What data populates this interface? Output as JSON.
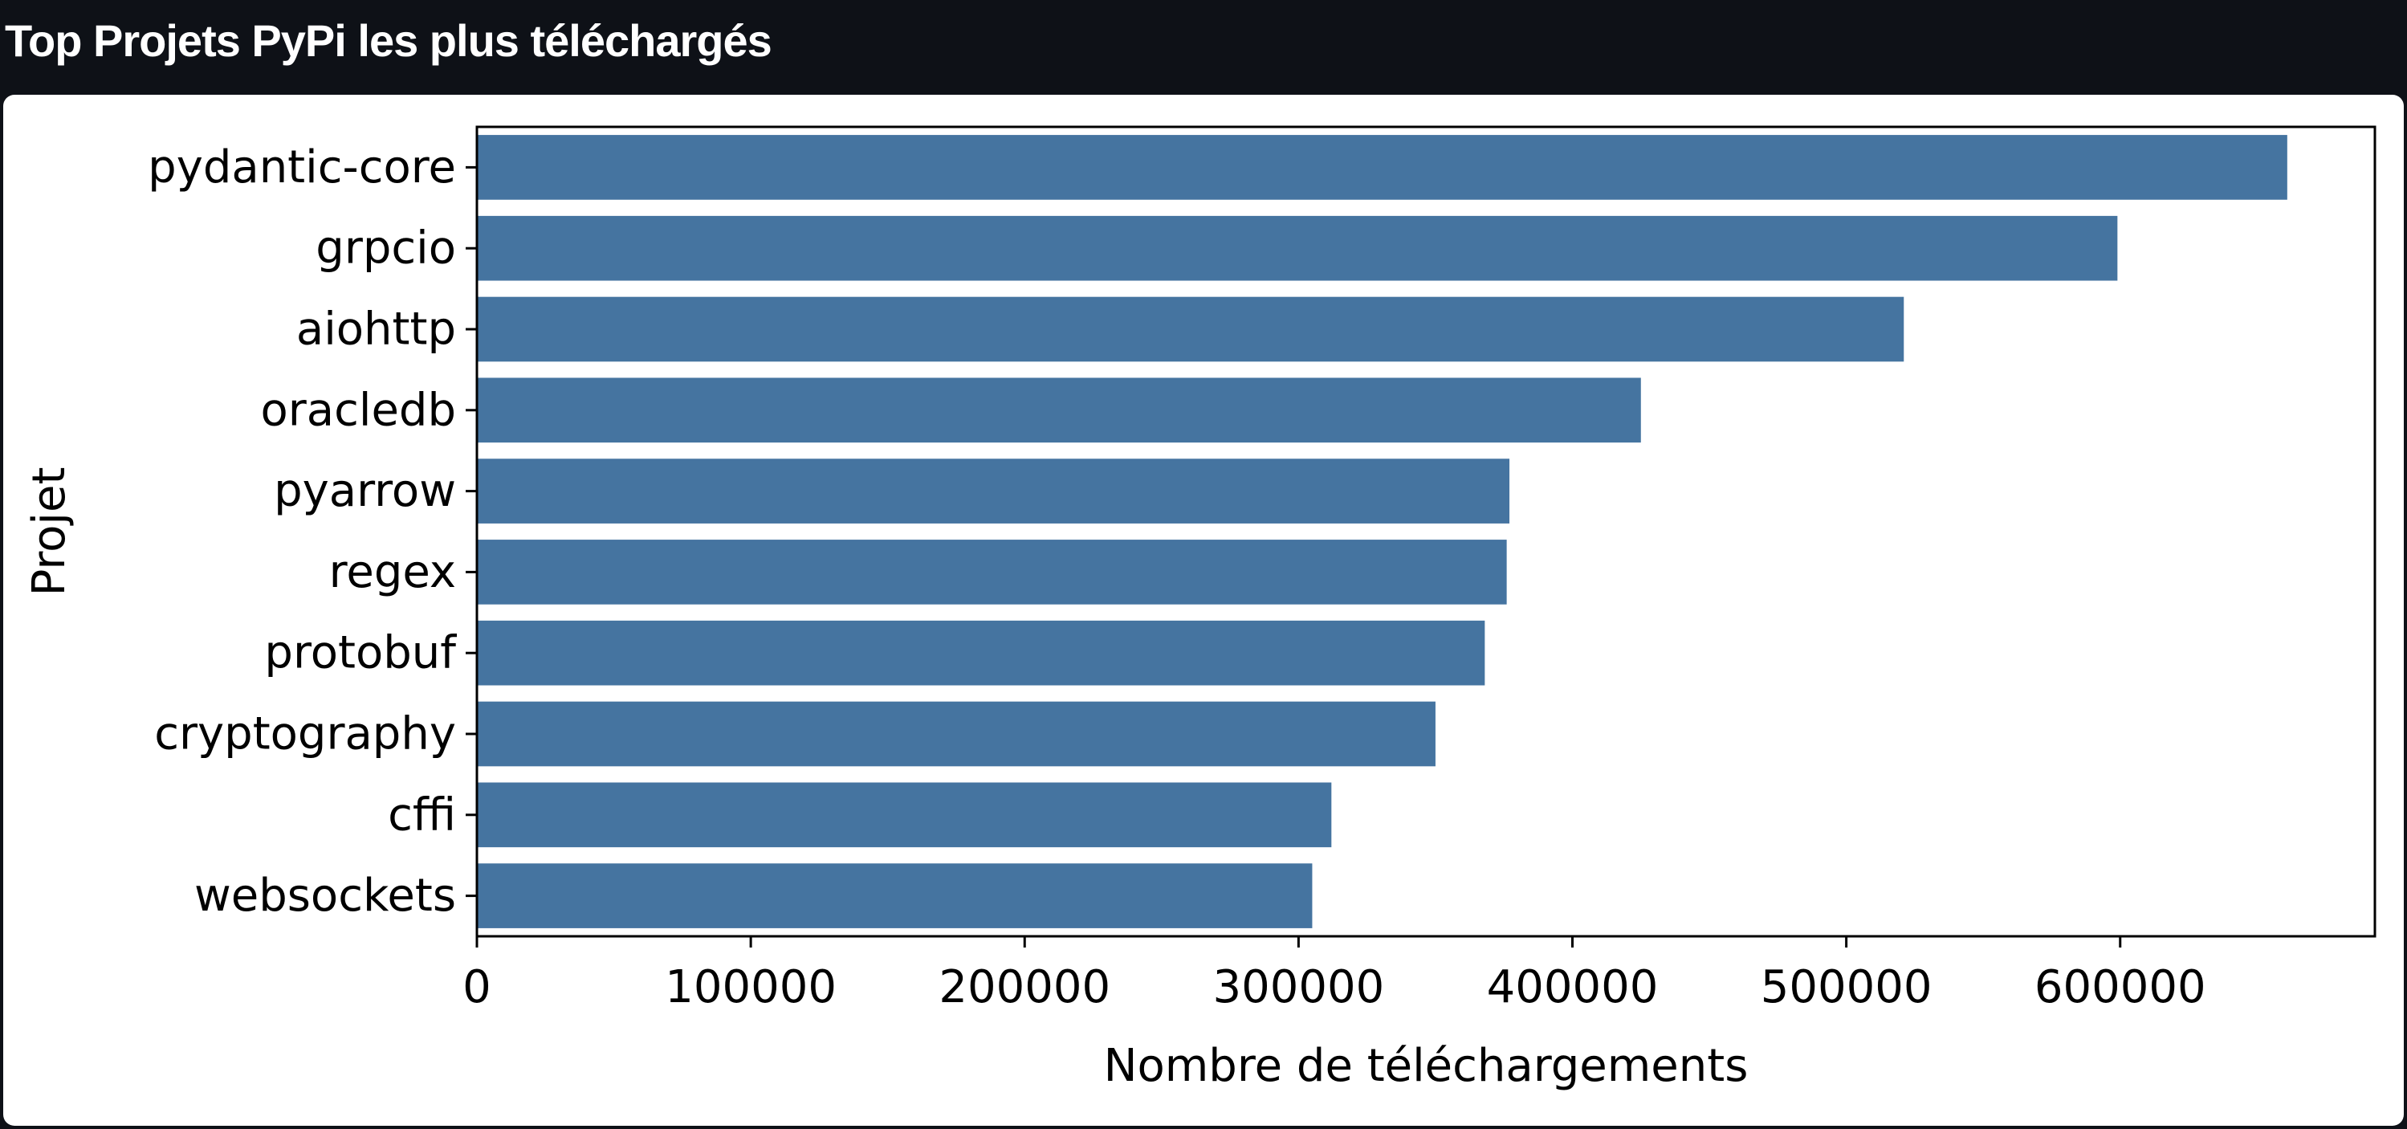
{
  "page": {
    "title": "Top Projets PyPi les plus téléchargés"
  },
  "chart_data": {
    "type": "bar",
    "orientation": "horizontal",
    "title": "",
    "xlabel": "Nombre de téléchargements",
    "ylabel": "Projet",
    "categories": [
      "pydantic-core",
      "grpcio",
      "aiohttp",
      "oracledb",
      "pyarrow",
      "regex",
      "protobuf",
      "cryptography",
      "cffi",
      "websockets"
    ],
    "values": [
      661000,
      599000,
      521000,
      425000,
      377000,
      376000,
      368000,
      350000,
      312000,
      305000
    ],
    "xlim": [
      0,
      693000
    ],
    "xticks": [
      0,
      100000,
      200000,
      300000,
      400000,
      500000,
      600000
    ],
    "xtick_labels": [
      "0",
      "100000",
      "200000",
      "300000",
      "400000",
      "500000",
      "600000"
    ],
    "grid": false,
    "bar_color": "#4574a0",
    "legend": "none"
  }
}
